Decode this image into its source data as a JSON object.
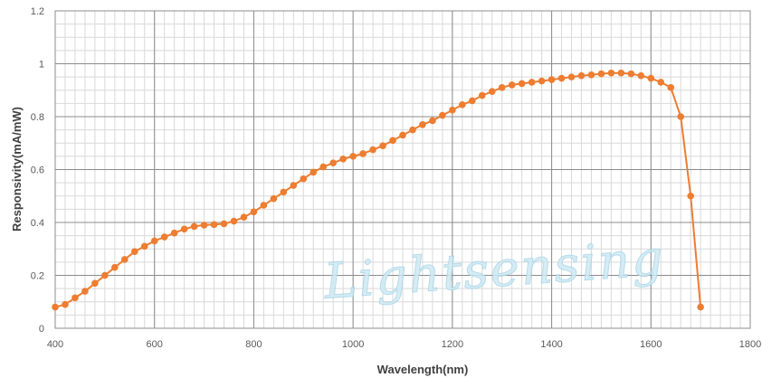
{
  "chart_data": {
    "type": "line",
    "title": "",
    "xlabel": "Wavelength(nm)",
    "ylabel": "Responsivity(mA/mW)",
    "xlim": [
      400,
      1800
    ],
    "ylim": [
      0,
      1.2
    ],
    "x_ticks": [
      "400",
      "600",
      "800",
      "1000",
      "1200",
      "1400",
      "1600",
      "1800"
    ],
    "y_ticks": [
      "0",
      "0.2",
      "0.4",
      "0.6",
      "0.8",
      "1",
      "1.2"
    ],
    "grid": true,
    "legend": "none",
    "line_color": "#ed7d31",
    "grid_color": "#d9d9d9",
    "watermark": "Lightsensing",
    "series": [
      {
        "x": [
          400,
          420,
          440,
          460,
          480,
          500,
          520,
          540,
          560,
          580,
          600,
          620,
          640,
          660,
          680,
          700,
          720,
          740,
          760,
          780,
          800,
          820,
          840,
          860,
          880,
          900,
          920,
          940,
          960,
          980,
          1000,
          1020,
          1040,
          1060,
          1080,
          1100,
          1120,
          1140,
          1160,
          1180,
          1200,
          1220,
          1240,
          1260,
          1280,
          1300,
          1320,
          1340,
          1360,
          1380,
          1400,
          1420,
          1440,
          1460,
          1480,
          1500,
          1520,
          1540,
          1560,
          1580,
          1600,
          1620,
          1640,
          1660,
          1680,
          1700
        ],
        "y": [
          0.08,
          0.09,
          0.115,
          0.14,
          0.17,
          0.2,
          0.23,
          0.26,
          0.29,
          0.31,
          0.33,
          0.345,
          0.36,
          0.375,
          0.385,
          0.39,
          0.392,
          0.395,
          0.405,
          0.42,
          0.44,
          0.465,
          0.49,
          0.515,
          0.54,
          0.565,
          0.59,
          0.61,
          0.625,
          0.64,
          0.65,
          0.66,
          0.675,
          0.69,
          0.71,
          0.73,
          0.75,
          0.77,
          0.785,
          0.805,
          0.825,
          0.845,
          0.86,
          0.88,
          0.895,
          0.91,
          0.92,
          0.925,
          0.93,
          0.935,
          0.94,
          0.945,
          0.95,
          0.955,
          0.958,
          0.962,
          0.965,
          0.965,
          0.962,
          0.955,
          0.945,
          0.93,
          0.91,
          0.8,
          0.5,
          0.08
        ]
      }
    ]
  }
}
